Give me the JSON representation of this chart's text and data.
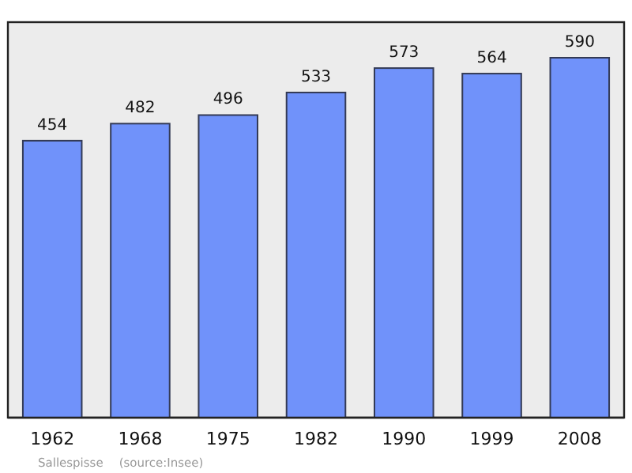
{
  "chart_data": {
    "type": "bar",
    "categories": [
      "1962",
      "1968",
      "1975",
      "1982",
      "1990",
      "1999",
      "2008"
    ],
    "values": [
      454,
      482,
      496,
      533,
      573,
      564,
      590
    ],
    "color": "#7092fa",
    "data_labels": true,
    "annotations": [
      "Sallespisse",
      "(source:Insee)"
    ]
  }
}
